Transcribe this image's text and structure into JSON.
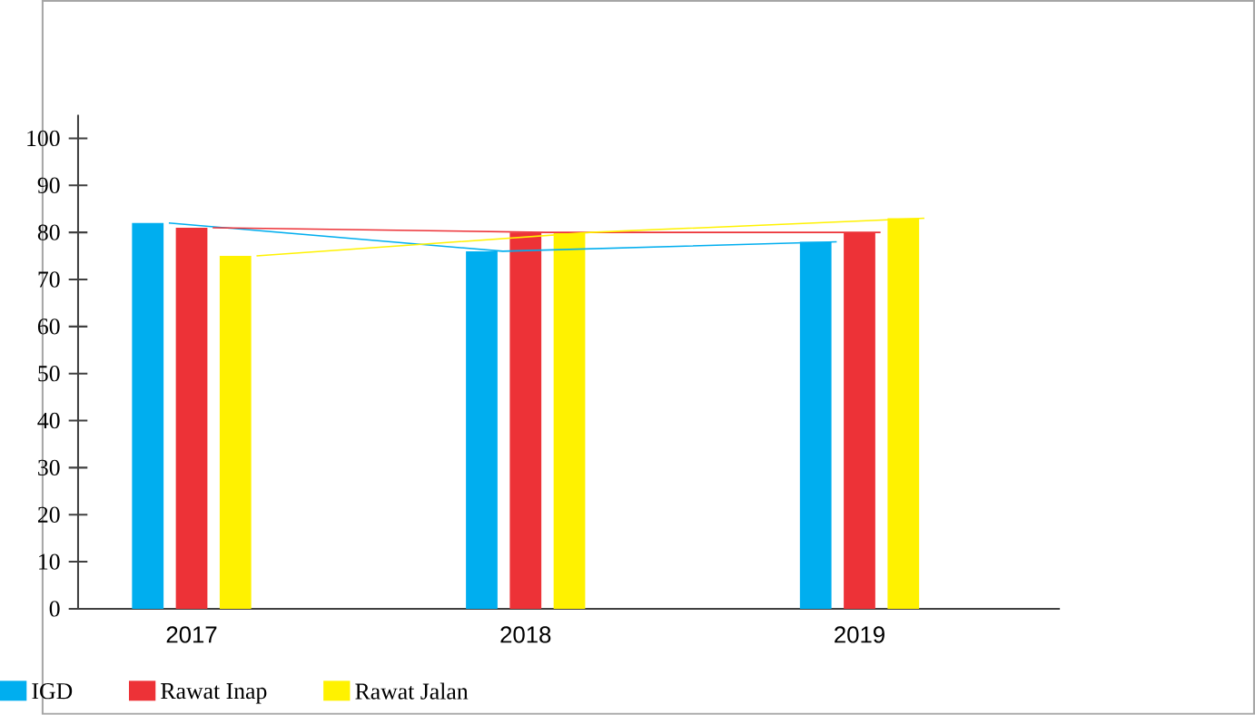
{
  "chart_data": {
    "type": "bar",
    "categories": [
      "2017",
      "2018",
      "2019"
    ],
    "series": [
      {
        "name": "IGD",
        "color": "#00aeef",
        "values": [
          82,
          76,
          78
        ]
      },
      {
        "name": "Rawat Inap",
        "color": "#ed3237",
        "values": [
          81,
          80,
          80
        ]
      },
      {
        "name": "Rawat Jalan",
        "color": "#fff200",
        "values": [
          75,
          80,
          83
        ]
      },
      {
        "type": "line",
        "color": "#00aeef",
        "values": [
          82,
          76,
          78
        ]
      },
      {
        "type": "line",
        "color": "#ed3237",
        "values": [
          81,
          80,
          80
        ]
      },
      {
        "type": "line",
        "color": "#fff200",
        "values": [
          75,
          80,
          83
        ]
      }
    ],
    "ylim": [
      0,
      105
    ],
    "yticks": [
      0,
      10,
      20,
      30,
      40,
      50,
      60,
      70,
      80,
      90,
      100
    ],
    "grid": false,
    "legend": "bottom"
  }
}
